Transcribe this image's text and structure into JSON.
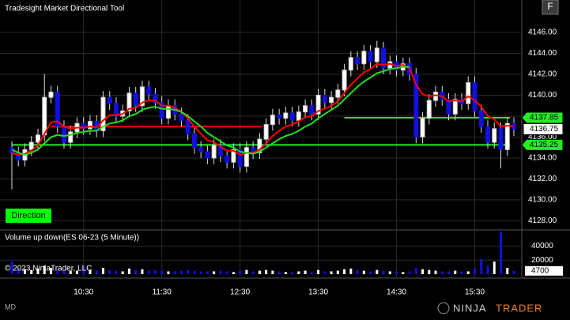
{
  "chart_data": [
    {
      "type": "candlestick",
      "title": "Tradesight Market Directional Tool",
      "x": [
        "9:35",
        "9:40",
        "9:45",
        "9:50",
        "9:55",
        "10:00",
        "10:05",
        "10:10",
        "10:15",
        "10:20",
        "10:25",
        "10:30",
        "10:35",
        "10:40",
        "10:45",
        "10:50",
        "10:55",
        "11:00",
        "11:05",
        "11:10",
        "11:15",
        "11:20",
        "11:25",
        "11:30",
        "11:35",
        "11:40",
        "11:45",
        "11:50",
        "11:55",
        "12:00",
        "12:05",
        "12:10",
        "12:15",
        "12:20",
        "12:25",
        "12:30",
        "12:35",
        "12:40",
        "12:45",
        "12:50",
        "12:55",
        "13:00",
        "13:05",
        "13:10",
        "13:15",
        "13:20",
        "13:25",
        "13:30",
        "13:35",
        "13:40",
        "13:45",
        "13:50",
        "13:55",
        "14:00",
        "14:05",
        "14:10",
        "14:15",
        "14:20",
        "14:25",
        "14:30",
        "14:35",
        "14:40",
        "14:45",
        "14:50",
        "14:55",
        "15:00",
        "15:05",
        "15:10",
        "15:15",
        "15:20",
        "15:25",
        "15:30",
        "15:35",
        "15:40",
        "15:45",
        "15:50",
        "15:55",
        "16:00"
      ],
      "open": [
        4135.0,
        4134.5,
        4133.8,
        4134.8,
        4135.5,
        4136.2,
        4139.8,
        4140.3,
        4137.0,
        4135.5,
        4136.5,
        4137.3,
        4136.8,
        4137.5,
        4136.6,
        4139.8,
        4139.2,
        4138.0,
        4138.5,
        4140.2,
        4139.0,
        4140.8,
        4140.1,
        4139.3,
        4137.8,
        4139.0,
        4138.2,
        4137.6,
        4136.3,
        4135.0,
        4134.6,
        4134.0,
        4135.2,
        4134.2,
        4133.6,
        4134.8,
        4133.2,
        4135.0,
        4134.5,
        4135.8,
        4137.2,
        4138.1,
        4137.8,
        4138.3,
        4137.6,
        4138.4,
        4139.0,
        4138.2,
        4140.0,
        4139.3,
        4139.8,
        4140.5,
        4142.4,
        4143.6,
        4143.0,
        4144.2,
        4143.2,
        4144.5,
        4142.6,
        4143.2,
        4142.4,
        4143.0,
        4142.0,
        4136.0,
        4137.8,
        4139.5,
        4140.3,
        4139.6,
        4138.2,
        4139.6,
        4139.2,
        4141.2,
        4138.5,
        4137.0,
        4135.5,
        4136.8,
        4134.8,
        4137.3
      ],
      "high": [
        4135.6,
        4135.1,
        4135.4,
        4136.1,
        4136.8,
        4142.0,
        4140.9,
        4140.9,
        4137.6,
        4137.1,
        4137.9,
        4137.9,
        4138.1,
        4138.1,
        4140.4,
        4140.4,
        4139.8,
        4139.1,
        4140.8,
        4140.8,
        4141.4,
        4141.4,
        4140.7,
        4139.9,
        4139.6,
        4139.6,
        4138.8,
        4138.2,
        4136.9,
        4135.6,
        4135.2,
        4135.8,
        4135.8,
        4134.8,
        4135.4,
        4135.4,
        4135.6,
        4135.6,
        4136.4,
        4137.8,
        4138.7,
        4138.7,
        4138.9,
        4138.9,
        4139.0,
        4139.6,
        4139.6,
        4140.6,
        4140.6,
        4140.4,
        4141.1,
        4143.0,
        4144.2,
        4144.2,
        4144.8,
        4144.8,
        4145.2,
        4145.1,
        4143.8,
        4143.8,
        4143.6,
        4143.6,
        4142.6,
        4138.4,
        4140.1,
        4140.9,
        4140.9,
        4140.2,
        4140.2,
        4140.2,
        4141.8,
        4141.8,
        4139.1,
        4137.6,
        4137.4,
        4137.4,
        4137.9,
        4137.9
      ],
      "low": [
        4131.0,
        4133.2,
        4133.2,
        4134.2,
        4134.9,
        4135.6,
        4139.2,
        4136.4,
        4134.9,
        4134.9,
        4135.9,
        4136.2,
        4136.2,
        4136.0,
        4136.0,
        4138.6,
        4137.4,
        4137.4,
        4137.9,
        4138.4,
        4138.4,
        4139.5,
        4138.7,
        4137.2,
        4137.2,
        4137.6,
        4137.0,
        4135.7,
        4134.4,
        4134.0,
        4133.4,
        4133.4,
        4133.6,
        4133.0,
        4133.0,
        4132.6,
        4132.6,
        4133.9,
        4133.9,
        4135.2,
        4136.6,
        4137.2,
        4137.2,
        4137.0,
        4137.0,
        4137.8,
        4137.6,
        4137.6,
        4138.7,
        4138.7,
        4139.2,
        4139.9,
        4141.8,
        4142.4,
        4142.4,
        4142.6,
        4142.6,
        4142.0,
        4142.0,
        4141.8,
        4141.8,
        4141.4,
        4135.4,
        4135.4,
        4137.2,
        4138.9,
        4139.0,
        4137.6,
        4137.6,
        4138.6,
        4138.6,
        4137.9,
        4136.4,
        4134.9,
        4134.9,
        4133.0,
        4134.2,
        4136.1
      ],
      "close": [
        4134.5,
        4133.8,
        4134.8,
        4135.5,
        4136.2,
        4139.8,
        4140.3,
        4137.0,
        4135.5,
        4136.5,
        4137.3,
        4136.8,
        4137.5,
        4136.6,
        4139.8,
        4139.2,
        4138.0,
        4138.5,
        4140.2,
        4139.0,
        4140.8,
        4140.1,
        4139.3,
        4137.8,
        4139.0,
        4138.2,
        4137.6,
        4136.3,
        4135.0,
        4134.6,
        4134.0,
        4135.2,
        4134.2,
        4133.6,
        4134.8,
        4133.2,
        4135.0,
        4134.5,
        4135.8,
        4137.2,
        4138.1,
        4137.8,
        4138.3,
        4137.6,
        4138.4,
        4139.0,
        4138.2,
        4140.0,
        4139.3,
        4139.8,
        4140.5,
        4142.4,
        4143.6,
        4143.0,
        4144.2,
        4143.2,
        4144.5,
        4142.6,
        4143.2,
        4142.4,
        4143.0,
        4142.0,
        4136.0,
        4137.8,
        4139.5,
        4140.3,
        4139.6,
        4138.2,
        4139.6,
        4139.2,
        4141.2,
        4138.5,
        4137.0,
        4135.5,
        4136.8,
        4134.8,
        4137.3,
        4136.75
      ],
      "up_color": "#ffffff",
      "down_color": "#1010e0",
      "series": [
        {
          "color": "#ff0000",
          "values": [
            4134.5,
            4134.3,
            4134.4,
            4134.7,
            4135.2,
            4136.3,
            4137.4,
            4137.5,
            4137.0,
            4136.8,
            4136.9,
            4136.9,
            4137.0,
            4136.9,
            4137.6,
            4138.1,
            4138.1,
            4138.2,
            4138.7,
            4138.8,
            4139.3,
            4139.5,
            4139.5,
            4139.0,
            4139.0,
            4138.8,
            4138.4,
            4137.8,
            4137.0,
            4136.3,
            4135.7,
            4135.5,
            4135.1,
            4134.7,
            4134.7,
            4134.3,
            4134.5,
            4134.5,
            4134.8,
            4135.4,
            4136.1,
            4136.6,
            4137.0,
            4137.2,
            4137.5,
            4137.9,
            4138.0,
            4138.5,
            4138.7,
            4139.0,
            4139.4,
            4140.2,
            4141.0,
            4141.6,
            4142.2,
            4142.5,
            4143.0,
            4142.9,
            4143.0,
            4142.8,
            4142.9,
            4142.6,
            4141.0,
            4140.1,
            4139.9,
            4140.0,
            4139.9,
            4139.4,
            4139.5,
            4139.4,
            4139.9,
            4139.5,
            4138.9,
            4138.0,
            4137.7,
            4137.0,
            4137.1,
            4137.0
          ]
        },
        {
          "color": "#22dd22",
          "values": [
            4134.8,
            4134.5,
            4134.3,
            4134.5,
            4134.8,
            4135.4,
            4136.0,
            4136.2,
            4136.1,
            4136.2,
            4136.4,
            4136.5,
            4136.6,
            4136.6,
            4137.0,
            4137.3,
            4137.4,
            4137.6,
            4138.0,
            4138.2,
            4138.6,
            4138.8,
            4138.9,
            4138.7,
            4138.7,
            4138.6,
            4138.4,
            4138.0,
            4137.5,
            4137.0,
            4136.4,
            4136.0,
            4135.6,
            4135.2,
            4135.0,
            4134.6,
            4134.5,
            4134.4,
            4134.6,
            4135.0,
            4135.4,
            4135.8,
            4136.1,
            4136.3,
            4136.6,
            4137.0,
            4137.3,
            4137.8,
            4138.2,
            4138.6,
            4139.0,
            4139.6,
            4140.2,
            4140.8,
            4141.3,
            4141.7,
            4142.1,
            4142.3,
            4142.5,
            4142.6,
            4142.7,
            4142.7,
            null,
            null,
            null,
            null,
            null,
            null,
            null,
            null,
            null,
            null,
            null,
            null,
            null,
            null,
            null,
            null
          ]
        }
      ],
      "levels": [
        {
          "value": 4137.0,
          "from": "10:05",
          "to": "12:50",
          "color": "#ff0000",
          "marker": false
        },
        {
          "value": 4135.25,
          "from": "9:35",
          "to": "16:00",
          "color": "#22ee22",
          "marker": true
        },
        {
          "value": 4137.85,
          "from": "13:50",
          "to": "16:00",
          "color": "#22ee22",
          "marker": true
        }
      ],
      "ylim": [
        4127.2,
        4149.1
      ],
      "yticks": [
        {
          "value": 4128,
          "label": "4128.00"
        },
        {
          "value": 4130,
          "label": "4130.00"
        },
        {
          "value": 4132,
          "label": "4132.00"
        },
        {
          "value": 4134,
          "label": "4134.00"
        },
        {
          "value": 4136,
          "label": "4136.00"
        },
        {
          "value": 4138,
          "label": "4138.00"
        },
        {
          "value": 4140,
          "label": "4140.00"
        },
        {
          "value": 4142,
          "label": "4142.00"
        },
        {
          "value": 4144,
          "label": "4144.00"
        },
        {
          "value": 4146,
          "label": "4146.00"
        }
      ],
      "xticks": [
        "10:30",
        "11:30",
        "12:30",
        "13:30",
        "14:30",
        "15:30"
      ],
      "grid": true
    },
    {
      "type": "bar",
      "title": "Volume up down(ES 06-23 (5 Minute))",
      "values": [
        18000,
        9000,
        7000,
        6000,
        8000,
        12000,
        9000,
        7000,
        6000,
        5000,
        5000,
        11000,
        6000,
        5000,
        9000,
        6000,
        5000,
        4000,
        8000,
        6000,
        7000,
        5000,
        6000,
        5000,
        4000,
        4000,
        5000,
        6000,
        5000,
        4000,
        4000,
        4000,
        5000,
        4000,
        3000,
        5000,
        6000,
        4000,
        5000,
        6000,
        5000,
        4000,
        3000,
        3000,
        4000,
        5000,
        3000,
        6000,
        4000,
        4000,
        5000,
        7000,
        8000,
        6000,
        5000,
        4000,
        6000,
        5000,
        4000,
        4000,
        3000,
        4000,
        9000,
        7000,
        6000,
        5000,
        4000,
        4000,
        5000,
        4000,
        4000,
        8000,
        22000,
        12000,
        18000,
        61000,
        9000,
        4700
      ],
      "ylim": [
        0,
        62000
      ],
      "yticks": [
        20000,
        40000
      ],
      "grid": true
    }
  ],
  "button": "F",
  "direction_label": "Direction",
  "copyright": "© 2023 NinjaTrader, LLC",
  "footer_left": "MD",
  "logo": {
    "part1": "NINJA",
    "part2": "TRADER"
  }
}
